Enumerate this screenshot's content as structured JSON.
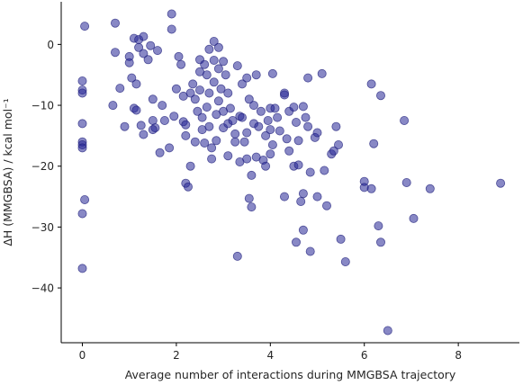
{
  "chart_data": {
    "type": "scatter",
    "title": "",
    "xlabel": "Average number of interactions during MMGBSA trajectory",
    "ylabel": "ΔH (MMGBSA) / kcal mol⁻¹",
    "xlim": [
      -0.45,
      9.3
    ],
    "ylim": [
      -49,
      7
    ],
    "xticks": [
      "0",
      "2",
      "4",
      "6",
      "8"
    ],
    "yticks": [
      "0",
      "−10",
      "−20",
      "−30",
      "−40"
    ],
    "grid": false,
    "legend": "none",
    "point_color": "#262696",
    "points": [
      [
        0.05,
        3.0
      ],
      [
        0.0,
        -6.0
      ],
      [
        0.0,
        -7.5
      ],
      [
        0.0,
        -8.0
      ],
      [
        0.0,
        -13.0
      ],
      [
        0.0,
        -16.0
      ],
      [
        0.0,
        -16.5
      ],
      [
        0.0,
        -17.0
      ],
      [
        0.05,
        -25.5
      ],
      [
        0.0,
        -27.8
      ],
      [
        0.0,
        -36.8
      ],
      [
        0.7,
        3.5
      ],
      [
        0.7,
        -1.3
      ],
      [
        0.65,
        -10.0
      ],
      [
        0.8,
        -7.2
      ],
      [
        0.9,
        -13.5
      ],
      [
        1.0,
        -2.0
      ],
      [
        1.0,
        -3.0
      ],
      [
        1.05,
        -5.5
      ],
      [
        1.1,
        1.0
      ],
      [
        1.1,
        -10.5
      ],
      [
        1.15,
        -10.8
      ],
      [
        1.15,
        -6.5
      ],
      [
        1.2,
        -0.5
      ],
      [
        1.2,
        0.8
      ],
      [
        1.3,
        1.3
      ],
      [
        1.3,
        -1.5
      ],
      [
        1.25,
        -13.3
      ],
      [
        1.3,
        -14.8
      ],
      [
        1.4,
        -2.5
      ],
      [
        1.45,
        -0.2
      ],
      [
        1.5,
        -12.5
      ],
      [
        1.5,
        -9.0
      ],
      [
        1.55,
        -13.7
      ],
      [
        1.5,
        -14.0
      ],
      [
        1.6,
        -1.0
      ],
      [
        1.65,
        -17.8
      ],
      [
        1.7,
        -10.0
      ],
      [
        1.75,
        -12.5
      ],
      [
        1.85,
        -17.0
      ],
      [
        1.9,
        5.0
      ],
      [
        1.9,
        2.5
      ],
      [
        1.95,
        -11.8
      ],
      [
        2.0,
        -7.3
      ],
      [
        2.05,
        -2.0
      ],
      [
        2.1,
        -3.3
      ],
      [
        2.15,
        -8.5
      ],
      [
        2.15,
        -12.7
      ],
      [
        2.2,
        -13.2
      ],
      [
        2.2,
        -15.0
      ],
      [
        2.2,
        -22.8
      ],
      [
        2.25,
        -23.4
      ],
      [
        2.3,
        -8.0
      ],
      [
        2.3,
        -20.0
      ],
      [
        2.35,
        -6.5
      ],
      [
        2.4,
        -9.0
      ],
      [
        2.4,
        -16.0
      ],
      [
        2.45,
        -11.0
      ],
      [
        2.5,
        -2.5
      ],
      [
        2.5,
        -4.5
      ],
      [
        2.5,
        -7.5
      ],
      [
        2.55,
        -12.0
      ],
      [
        2.55,
        -14.0
      ],
      [
        2.6,
        -16.2
      ],
      [
        2.6,
        -3.3
      ],
      [
        2.65,
        -5.0
      ],
      [
        2.65,
        -10.3
      ],
      [
        2.7,
        -0.8
      ],
      [
        2.7,
        -8.0
      ],
      [
        2.7,
        -13.5
      ],
      [
        2.75,
        -17.0
      ],
      [
        2.75,
        -18.8
      ],
      [
        2.8,
        0.5
      ],
      [
        2.8,
        -2.6
      ],
      [
        2.8,
        -6.2
      ],
      [
        2.85,
        -11.5
      ],
      [
        2.85,
        -15.8
      ],
      [
        2.9,
        -0.5
      ],
      [
        2.9,
        -4.0
      ],
      [
        2.9,
        -9.3
      ],
      [
        2.95,
        -7.3
      ],
      [
        3.0,
        -2.8
      ],
      [
        3.0,
        -11.0
      ],
      [
        3.0,
        -13.7
      ],
      [
        3.05,
        -5.0
      ],
      [
        3.1,
        -8.0
      ],
      [
        3.1,
        -13.0
      ],
      [
        3.1,
        -18.3
      ],
      [
        3.15,
        -10.5
      ],
      [
        3.2,
        -12.5
      ],
      [
        3.25,
        -14.7
      ],
      [
        3.25,
        -16.0
      ],
      [
        3.3,
        -3.5
      ],
      [
        3.3,
        -34.8
      ],
      [
        3.35,
        -11.8
      ],
      [
        3.35,
        -19.3
      ],
      [
        3.4,
        -6.5
      ],
      [
        3.4,
        -12.0
      ],
      [
        3.45,
        -16.0
      ],
      [
        3.5,
        -5.5
      ],
      [
        3.5,
        -14.5
      ],
      [
        3.5,
        -18.8
      ],
      [
        3.55,
        -9.0
      ],
      [
        3.55,
        -25.3
      ],
      [
        3.6,
        -26.7
      ],
      [
        3.6,
        -21.5
      ],
      [
        3.65,
        -10.0
      ],
      [
        3.65,
        -13.0
      ],
      [
        3.7,
        -18.5
      ],
      [
        3.7,
        -5.0
      ],
      [
        3.75,
        -13.5
      ],
      [
        3.8,
        -11.0
      ],
      [
        3.85,
        -19.0
      ],
      [
        3.9,
        -15.0
      ],
      [
        3.9,
        -20.0
      ],
      [
        3.95,
        -12.5
      ],
      [
        4.0,
        -10.5
      ],
      [
        4.0,
        -14.0
      ],
      [
        4.0,
        -18.0
      ],
      [
        4.05,
        -4.8
      ],
      [
        4.05,
        -16.5
      ],
      [
        4.1,
        -10.5
      ],
      [
        4.15,
        -12.0
      ],
      [
        4.2,
        -14.2
      ],
      [
        4.3,
        -8.0
      ],
      [
        4.3,
        -8.3
      ],
      [
        4.3,
        -25.0
      ],
      [
        4.35,
        -15.5
      ],
      [
        4.4,
        -11.0
      ],
      [
        4.4,
        -17.5
      ],
      [
        4.5,
        -10.3
      ],
      [
        4.5,
        -20.0
      ],
      [
        4.55,
        -12.8
      ],
      [
        4.55,
        -32.5
      ],
      [
        4.6,
        -15.8
      ],
      [
        4.6,
        -19.8
      ],
      [
        4.65,
        -25.8
      ],
      [
        4.7,
        -30.5
      ],
      [
        4.7,
        -10.2
      ],
      [
        4.7,
        -24.5
      ],
      [
        4.75,
        -12.0
      ],
      [
        4.8,
        -5.5
      ],
      [
        4.8,
        -13.5
      ],
      [
        4.85,
        -34.0
      ],
      [
        4.85,
        -21.0
      ],
      [
        4.95,
        -15.3
      ],
      [
        5.0,
        -14.5
      ],
      [
        5.0,
        -25.0
      ],
      [
        5.1,
        -4.8
      ],
      [
        5.15,
        -20.7
      ],
      [
        5.2,
        -26.5
      ],
      [
        5.3,
        -18.0
      ],
      [
        5.35,
        -17.5
      ],
      [
        5.4,
        -13.5
      ],
      [
        5.45,
        -16.5
      ],
      [
        5.5,
        -32.0
      ],
      [
        5.6,
        -35.7
      ],
      [
        6.0,
        -22.5
      ],
      [
        6.0,
        -23.5
      ],
      [
        6.15,
        -23.7
      ],
      [
        6.15,
        -6.5
      ],
      [
        6.2,
        -16.3
      ],
      [
        6.3,
        -29.8
      ],
      [
        6.35,
        -8.4
      ],
      [
        6.35,
        -32.5
      ],
      [
        6.5,
        -47.0
      ],
      [
        6.85,
        -12.5
      ],
      [
        6.9,
        -22.7
      ],
      [
        7.05,
        -28.6
      ],
      [
        7.4,
        -23.7
      ],
      [
        8.9,
        -22.8
      ]
    ]
  }
}
